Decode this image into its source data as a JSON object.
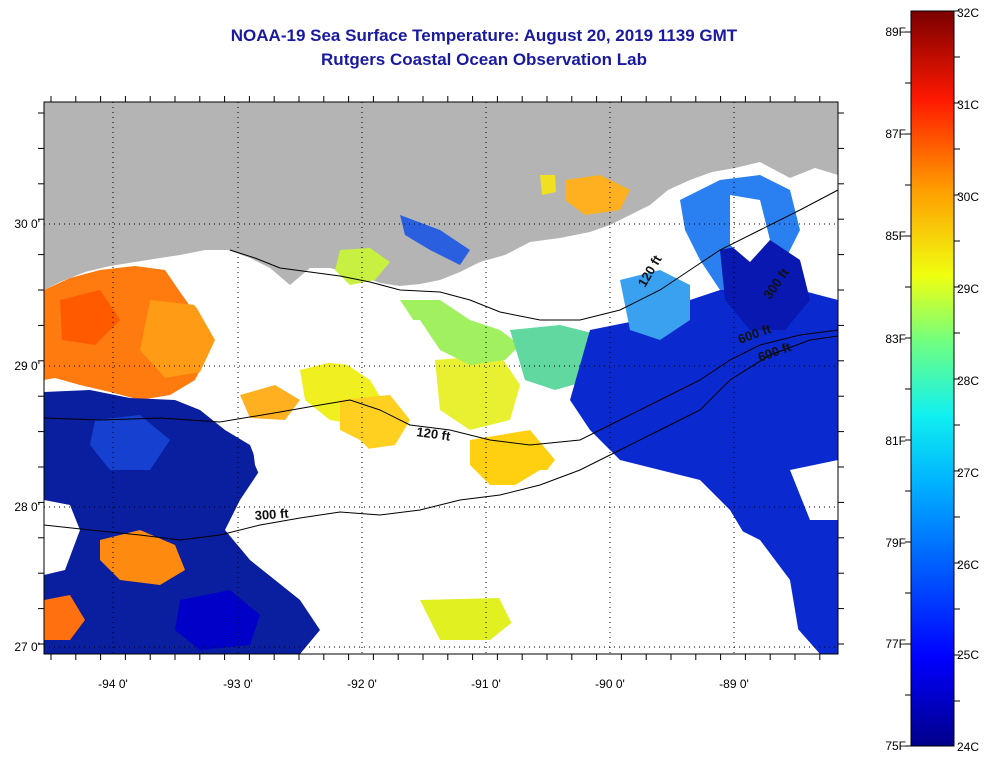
{
  "header": {
    "title": "NOAA-19 Sea Surface Temperature:  August 20, 2019 1139 GMT",
    "subtitle": "Rutgers Coastal Ocean Observation Lab"
  },
  "map": {
    "lon_ticks": [
      "-94 0'",
      "-93 0'",
      "-92 0'",
      "-91 0'",
      "-90 0'",
      "-89 0'"
    ],
    "lat_ticks": [
      "30 0'",
      "29 0'",
      "28 0'",
      "27 0'"
    ],
    "contour_labels": [
      "120 ft",
      "300 ft",
      "600 ft",
      "120 ft",
      "300 ft",
      "600 ft"
    ],
    "colors": {
      "land": "#b4b4b4",
      "cloud": "#ffffff"
    }
  },
  "colorbar": {
    "celsius_labels": [
      "32C",
      "31C",
      "30C",
      "29C",
      "28C",
      "27C",
      "26C",
      "25C",
      "24C"
    ],
    "fahrenheit_labels": [
      "89F",
      "87F",
      "85F",
      "83F",
      "81F",
      "79F",
      "77F",
      "75F"
    ]
  }
}
